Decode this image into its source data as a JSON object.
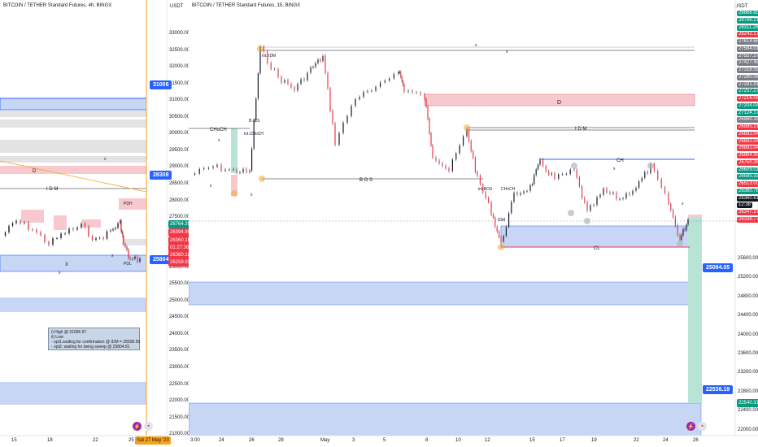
{
  "left_chart": {
    "title": "BITCOIN / TETHER Standard Futures, 4h, BINGX",
    "currency": "USDT",
    "y_ticks": [
      "33000.00",
      "32500.00",
      "32000.00",
      "31500.00",
      "31000.00",
      "30500.00",
      "30000.00",
      "29500.00",
      "29000.00",
      "28500.00",
      "28000.00",
      "27500.00",
      "27000.00",
      "26500.00",
      "26000.00",
      "25500.00",
      "25000.00",
      "24500.00",
      "24000.00",
      "23500.00",
      "23000.00",
      "22500.00",
      "22000.00",
      "21500.00",
      "21000.00"
    ],
    "x_ticks": [
      "15",
      "18",
      "22",
      "25"
    ],
    "date_badge": "Sat 27 May '23",
    "callouts": [
      "31006",
      "28308",
      "25804"
    ],
    "labels": {
      "d": "D",
      "idm": "I D M",
      "x": "X",
      "pdh": "PDH",
      "pdl": "PDL",
      "x_small": "x"
    },
    "price_badges": [
      "26764.35",
      "26394.89",
      "26360.16",
      "01:27:36",
      "26360.16",
      "26259.93"
    ],
    "note": [
      "i) High @ 31006.97",
      "ii) Low:",
      "- opt1.waiting for confirmation @ IDM = 28308.59",
      "- opt2. waiting for being sweep @ 25804.81"
    ]
  },
  "right_chart": {
    "title": "BITCOIN / TETHER Standard Futures, 15, BINGX",
    "currency": "USDT",
    "y_ticks": [
      "25600.00",
      "25200.00",
      "24800.00",
      "24400.00",
      "24000.00",
      "23600.00",
      "23200.00",
      "22800.00",
      "22400.00",
      "22000.00"
    ],
    "x_ticks": [
      "3:00",
      "24",
      "26",
      "28",
      "May",
      "3",
      "5",
      "8",
      "10",
      "12",
      "15",
      "17",
      "19",
      "22",
      "24",
      "26"
    ],
    "labels": {
      "choch": "CHoCH",
      "bos": "B.O.S",
      "int_bos": "B O S",
      "int_idm": "int. IDM",
      "int_choch": "int.CHoCH",
      "int_bos_low": "B O S",
      "bos_mid": "B O S",
      "idm": "I D M",
      "d": "D",
      "ch": "CH",
      "cl": "CL",
      "choch_low": "CHoCH",
      "int_bos2": "int.BOS",
      "idm_low": "IDM",
      "x": "x"
    },
    "price_badges": [
      {
        "v": "28866.65",
        "c": "#089981"
      },
      {
        "v": "28786.21",
        "c": "#089981"
      },
      {
        "v": "28311.26",
        "c": "#089981"
      },
      {
        "v": "28242.17",
        "c": "#f23645"
      },
      {
        "v": "27614.66",
        "c": "#787b86"
      },
      {
        "v": "27584.01",
        "c": "#787b86"
      },
      {
        "v": "27527.27",
        "c": "#787b86"
      },
      {
        "v": "27427.48",
        "c": "#787b86"
      },
      {
        "v": "27318.59",
        "c": "#787b86"
      },
      {
        "v": "27290.06",
        "c": "#787b86"
      },
      {
        "v": "27281.91",
        "c": "#787b86"
      },
      {
        "v": "27257.27",
        "c": "#089981"
      },
      {
        "v": "27216.06",
        "c": "#f23645"
      },
      {
        "v": "27204.04",
        "c": "#089981"
      },
      {
        "v": "27124.17",
        "c": "#089981"
      },
      {
        "v": "26960.39",
        "c": "#787b86"
      },
      {
        "v": "26985.21",
        "c": "#f23645"
      },
      {
        "v": "26882.04",
        "c": "#f23645"
      },
      {
        "v": "26882.04",
        "c": "#f23645"
      },
      {
        "v": "26881.04",
        "c": "#f23645"
      },
      {
        "v": "26864.99",
        "c": "#f23645"
      },
      {
        "v": "26750.36",
        "c": "#f23645"
      },
      {
        "v": "26609.01",
        "c": "#089981"
      },
      {
        "v": "26585.33",
        "c": "#089981"
      },
      {
        "v": "26513.00",
        "c": "#f23645"
      },
      {
        "v": "26360.76",
        "c": "#089981"
      },
      {
        "v": "26360.61",
        "c": "#131722"
      },
      {
        "v": "12:38",
        "c": "#131722"
      },
      {
        "v": "26347.27",
        "c": "#f23645"
      },
      {
        "v": "26336.77",
        "c": "#f23645"
      }
    ],
    "callouts": [
      "25094.05",
      "22536.19"
    ],
    "bottom_badge": "22540.31"
  },
  "colors": {
    "blue_zone": "#c7d6f5",
    "red_zone": "#f7c9cf",
    "grey_zone": "#e3e3e3",
    "callout_blue": "#2962ff",
    "green": "#089981",
    "red": "#f23645",
    "orange": "#f7a21b"
  }
}
